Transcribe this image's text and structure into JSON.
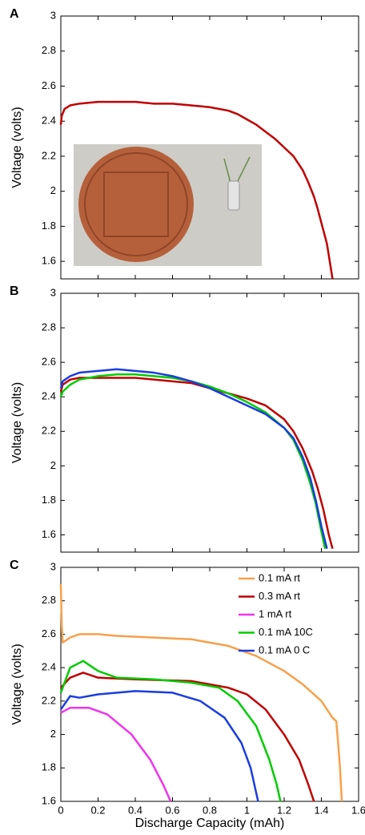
{
  "chart_data": [
    {
      "type": "line",
      "panel_label": "A",
      "ylabel": "Voltage (volts)",
      "xlim": [
        0,
        1.6
      ],
      "xticks": [
        0,
        0.2,
        0.4,
        0.6,
        0.8,
        1,
        1.2,
        1.4,
        1.6
      ],
      "ylim": [
        1.5,
        3
      ],
      "yticks": [
        1.6,
        1.8,
        2,
        2.2,
        2.4,
        2.6,
        2.8,
        3
      ],
      "series": [
        {
          "color": "#c00000",
          "x": [
            0,
            0.005,
            0.02,
            0.05,
            0.1,
            0.2,
            0.3,
            0.4,
            0.5,
            0.6,
            0.7,
            0.8,
            0.9,
            0.95,
            1.0,
            1.05,
            1.1,
            1.15,
            1.2,
            1.25,
            1.3,
            1.33,
            1.36,
            1.38,
            1.4,
            1.43,
            1.46
          ],
          "values": [
            2.38,
            2.43,
            2.47,
            2.49,
            2.5,
            2.51,
            2.51,
            2.51,
            2.5,
            2.5,
            2.49,
            2.48,
            2.46,
            2.44,
            2.41,
            2.38,
            2.34,
            2.3,
            2.25,
            2.2,
            2.12,
            2.05,
            1.97,
            1.9,
            1.82,
            1.7,
            1.5
          ]
        }
      ]
    },
    {
      "type": "line",
      "panel_label": "B",
      "ylabel": "Voltage (volts)",
      "xlim": [
        0,
        1.6
      ],
      "xticks": [
        0,
        0.2,
        0.4,
        0.6,
        0.8,
        1,
        1.2,
        1.4,
        1.6
      ],
      "ylim": [
        1.5,
        3
      ],
      "yticks": [
        1.6,
        1.8,
        2,
        2.2,
        2.4,
        2.6,
        2.8,
        3
      ],
      "series": [
        {
          "color": "#c00000",
          "x": [
            0,
            0.01,
            0.05,
            0.1,
            0.2,
            0.3,
            0.4,
            0.5,
            0.6,
            0.7,
            0.8,
            0.9,
            1.0,
            1.1,
            1.2,
            1.25,
            1.3,
            1.35,
            1.38,
            1.41,
            1.44,
            1.46
          ],
          "values": [
            2.43,
            2.47,
            2.5,
            2.51,
            2.51,
            2.51,
            2.51,
            2.5,
            2.49,
            2.48,
            2.45,
            2.42,
            2.39,
            2.35,
            2.27,
            2.2,
            2.1,
            1.97,
            1.87,
            1.75,
            1.6,
            1.52
          ]
        },
        {
          "color": "#00cc00",
          "x": [
            0,
            0.01,
            0.05,
            0.1,
            0.2,
            0.3,
            0.4,
            0.5,
            0.6,
            0.7,
            0.8,
            0.9,
            1.0,
            1.1,
            1.2,
            1.25,
            1.3,
            1.34,
            1.37,
            1.4,
            1.42
          ],
          "values": [
            2.4,
            2.43,
            2.47,
            2.5,
            2.52,
            2.53,
            2.53,
            2.52,
            2.51,
            2.49,
            2.46,
            2.42,
            2.37,
            2.31,
            2.22,
            2.15,
            2.03,
            1.9,
            1.78,
            1.62,
            1.52
          ]
        },
        {
          "color": "#1a3de0",
          "x": [
            0,
            0.01,
            0.05,
            0.1,
            0.2,
            0.3,
            0.4,
            0.5,
            0.6,
            0.7,
            0.8,
            0.9,
            1.0,
            1.1,
            1.2,
            1.25,
            1.3,
            1.34,
            1.37,
            1.4,
            1.43
          ],
          "values": [
            2.45,
            2.49,
            2.52,
            2.54,
            2.55,
            2.56,
            2.55,
            2.54,
            2.52,
            2.49,
            2.45,
            2.4,
            2.35,
            2.3,
            2.22,
            2.16,
            2.05,
            1.93,
            1.8,
            1.65,
            1.52
          ]
        }
      ]
    },
    {
      "type": "line",
      "panel_label": "C",
      "ylabel": "Voltage (volts)",
      "xlabel": "Discharge Capacity (mAh)",
      "xlim": [
        0,
        1.6
      ],
      "xticks": [
        0,
        0.2,
        0.4,
        0.6,
        0.8,
        1,
        1.2,
        1.4,
        1.6
      ],
      "ylim": [
        1.6,
        3
      ],
      "yticks": [
        1.6,
        1.8,
        2,
        2.2,
        2.4,
        2.6,
        2.8,
        3
      ],
      "legend": "upper right",
      "series": [
        {
          "name": "0.1 mA rt",
          "color": "#f7a04a",
          "x": [
            0,
            0.005,
            0.01,
            0.05,
            0.1,
            0.2,
            0.3,
            0.5,
            0.7,
            0.9,
            1.05,
            1.2,
            1.3,
            1.4,
            1.46,
            1.48,
            1.49,
            1.5,
            1.51
          ],
          "values": [
            2.9,
            2.65,
            2.55,
            2.58,
            2.6,
            2.6,
            2.59,
            2.58,
            2.57,
            2.53,
            2.47,
            2.38,
            2.3,
            2.2,
            2.1,
            2.08,
            1.95,
            1.8,
            1.6
          ]
        },
        {
          "name": "0.3 mA rt",
          "color": "#c00000",
          "x": [
            0,
            0.05,
            0.12,
            0.2,
            0.4,
            0.7,
            0.9,
            1.0,
            1.1,
            1.2,
            1.28,
            1.33,
            1.36
          ],
          "values": [
            2.28,
            2.34,
            2.37,
            2.34,
            2.33,
            2.32,
            2.28,
            2.24,
            2.15,
            2.0,
            1.85,
            1.7,
            1.6
          ]
        },
        {
          "name": "1 mA rt",
          "color": "#ee33ee",
          "x": [
            0,
            0.05,
            0.15,
            0.25,
            0.38,
            0.48,
            0.55,
            0.59
          ],
          "values": [
            2.13,
            2.16,
            2.16,
            2.12,
            2.0,
            1.85,
            1.7,
            1.6
          ]
        },
        {
          "name": "0.1 mA 10C",
          "color": "#00cc00",
          "x": [
            0,
            0.05,
            0.12,
            0.2,
            0.3,
            0.5,
            0.7,
            0.85,
            0.95,
            1.05,
            1.12,
            1.16,
            1.18
          ],
          "values": [
            2.25,
            2.4,
            2.44,
            2.38,
            2.34,
            2.33,
            2.31,
            2.28,
            2.2,
            2.05,
            1.85,
            1.7,
            1.6
          ]
        },
        {
          "name": "0.1 mA 0 C",
          "color": "#1a3de0",
          "x": [
            0,
            0.05,
            0.1,
            0.2,
            0.4,
            0.6,
            0.75,
            0.88,
            0.97,
            1.02,
            1.06
          ],
          "values": [
            2.15,
            2.23,
            2.22,
            2.24,
            2.26,
            2.25,
            2.2,
            2.1,
            1.95,
            1.8,
            1.6
          ]
        }
      ]
    }
  ]
}
